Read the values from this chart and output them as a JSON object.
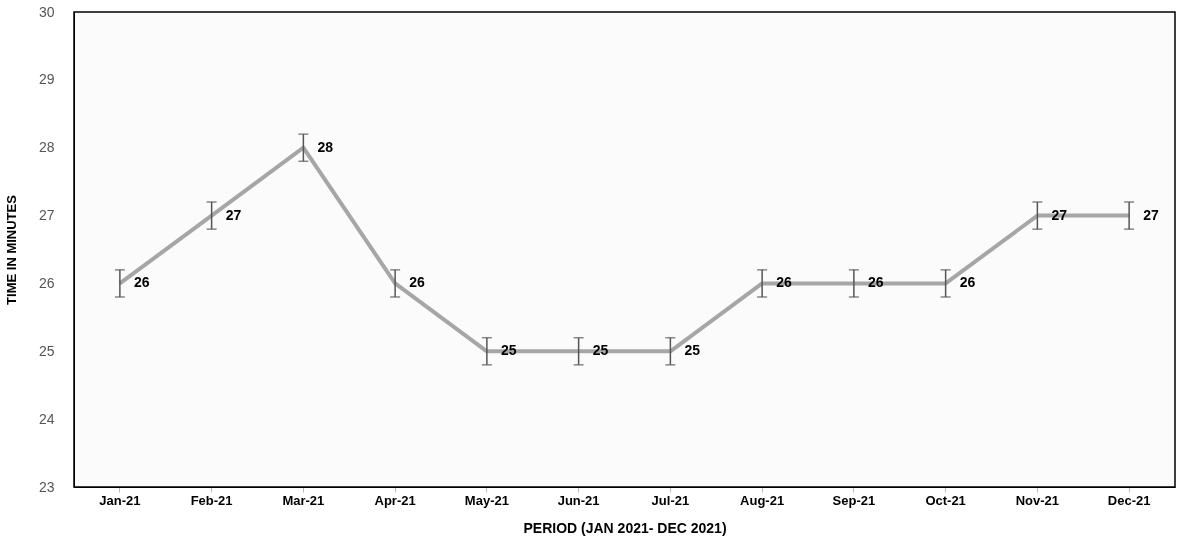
{
  "chart_data": {
    "type": "line",
    "xlabel": "PERIOD (JAN 2021- DEC 2021)",
    "ylabel": "TIME IN MINUTES",
    "categories": [
      "Jan-21",
      "Feb-21",
      "Mar-21",
      "Apr-21",
      "May-21",
      "Jun-21",
      "Jul-21",
      "Aug-21",
      "Sep-21",
      "Oct-21",
      "Nov-21",
      "Dec-21"
    ],
    "series": [
      {
        "color": "#a6a6a6",
        "values": [
          26,
          27,
          28,
          26,
          25,
          25,
          25,
          26,
          26,
          26,
          27,
          27
        ],
        "errors": [
          0.2,
          0.2,
          0.2,
          0.2,
          0.2,
          0.2,
          0.2,
          0.2,
          0.2,
          0.2,
          0.2,
          0.2
        ]
      }
    ],
    "ylim": [
      23,
      30
    ],
    "yticks": [
      23,
      24,
      25,
      26,
      27,
      28,
      29,
      30
    ],
    "grid": false,
    "marker": "none",
    "line_style": "solid",
    "data_labels": true
  }
}
